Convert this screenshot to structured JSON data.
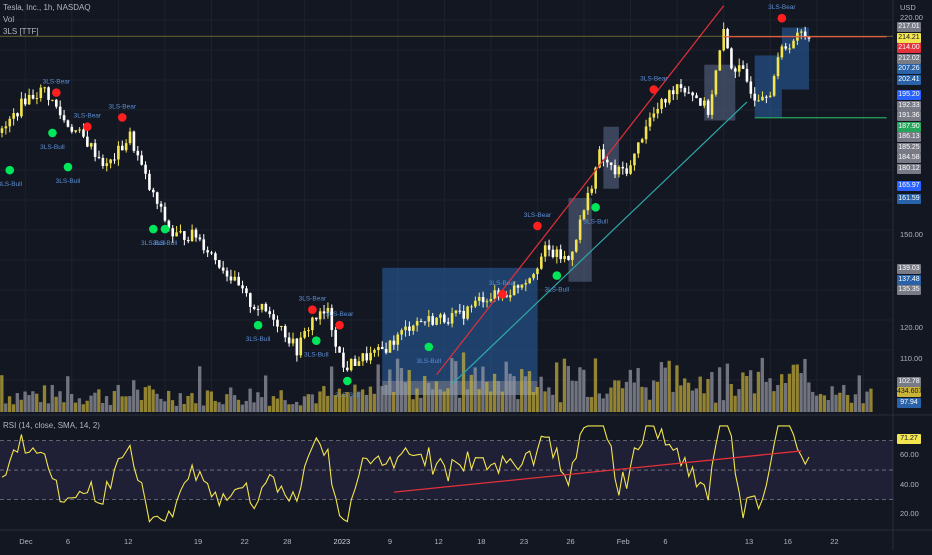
{
  "header": {
    "title": "Tesla, Inc., 1h, NASDAQ",
    "vol_label": "Vol",
    "indicator": "3LS [TTF]",
    "currency": "USD"
  },
  "rsi_panel": {
    "label": "RSI (14, close, SMA, 14, 2)",
    "value": "71.27",
    "ticks": [
      "60.00",
      "40.00",
      "20.00"
    ]
  },
  "price_axis": {
    "ticks": [
      "220.00",
      "150.00",
      "120.00",
      "110.00"
    ],
    "tags": [
      {
        "text": "217.01",
        "color": "#787b86",
        "price": 217.01
      },
      {
        "text": "214.21",
        "color": "#f2e54f",
        "price": 214.21,
        "dark": true
      },
      {
        "text": "214.00",
        "color": "#e3303a",
        "price": 214.0
      },
      {
        "text": "212.02",
        "color": "#787b86",
        "price": 212.02
      },
      {
        "text": "207.26",
        "color": "#2962a8",
        "price": 207.26
      },
      {
        "text": "202.41",
        "color": "#2962a8",
        "price": 202.41
      },
      {
        "text": "195.20",
        "color": "#2962ff",
        "price": 195.2
      },
      {
        "text": "192.33",
        "color": "#787b86",
        "price": 192.33
      },
      {
        "text": "191.36",
        "color": "#787b86",
        "price": 191.36
      },
      {
        "text": "187.90",
        "color": "#26a65b",
        "price": 187.9
      },
      {
        "text": "186.13",
        "color": "#787b86",
        "price": 186.13
      },
      {
        "text": "185.25",
        "color": "#787b86",
        "price": 185.25
      },
      {
        "text": "184.58",
        "color": "#787b86",
        "price": 184.58
      },
      {
        "text": "180.12",
        "color": "#787b86",
        "price": 180.12
      },
      {
        "text": "165.97",
        "color": "#2962ff",
        "price": 165.97
      },
      {
        "text": "161.59",
        "color": "#2962a8",
        "price": 161.59
      },
      {
        "text": "139.03",
        "color": "#787b86",
        "price": 139.03
      },
      {
        "text": "137.48",
        "color": "#2962a8",
        "price": 137.48
      },
      {
        "text": "135.35",
        "color": "#787b86",
        "price": 135.35
      },
      {
        "text": "102.78",
        "color": "#787b86",
        "price": 102.78
      },
      {
        "text": "434.607K",
        "color": "#c9b23a",
        "price": 100.2,
        "dark": true
      },
      {
        "text": "97.94",
        "color": "#2962a8",
        "price": 97.94
      }
    ]
  },
  "time_axis": {
    "labels": [
      {
        "text": "Dec",
        "i": 6
      },
      {
        "text": "6",
        "i": 18
      },
      {
        "text": "12",
        "i": 33
      },
      {
        "text": "19",
        "i": 51
      },
      {
        "text": "22",
        "i": 63
      },
      {
        "text": "28",
        "i": 74
      },
      {
        "text": "2023",
        "i": 87
      },
      {
        "text": "9",
        "i": 101
      },
      {
        "text": "12",
        "i": 113
      },
      {
        "text": "18",
        "i": 124
      },
      {
        "text": "23",
        "i": 135
      },
      {
        "text": "26",
        "i": 147
      },
      {
        "text": "Feb",
        "i": 160
      },
      {
        "text": "6",
        "i": 172
      },
      {
        "text": "13",
        "i": 193
      },
      {
        "text": "16",
        "i": 203
      },
      {
        "text": "22",
        "i": 215
      }
    ]
  },
  "signals": [
    {
      "type": "bull",
      "text": "3LS-Bull",
      "i": 2,
      "price": 171
    },
    {
      "type": "bear",
      "text": "3LS-Bear",
      "i": 14,
      "price": 196
    },
    {
      "type": "bull",
      "text": "3LS-Bull",
      "i": 13,
      "price": 183
    },
    {
      "type": "bear",
      "text": "3LS-Bear",
      "i": 22,
      "price": 185
    },
    {
      "type": "bull",
      "text": "3LS-Bull",
      "i": 17,
      "price": 172
    },
    {
      "type": "bear",
      "text": "3LS-Bear",
      "i": 31,
      "price": 188
    },
    {
      "type": "bull",
      "text": "3LS-Bull",
      "i": 39,
      "price": 152
    },
    {
      "type": "bull",
      "text": "3LS-Bull",
      "i": 42,
      "price": 152
    },
    {
      "type": "bull",
      "text": "3LS-Bull",
      "i": 66,
      "price": 121
    },
    {
      "type": "bear",
      "text": "3LS-Bear",
      "i": 80,
      "price": 126
    },
    {
      "type": "bull",
      "text": "3LS-Bull",
      "i": 81,
      "price": 116
    },
    {
      "type": "bear",
      "text": "3LS-Bear",
      "i": 87,
      "price": 121
    },
    {
      "type": "bull",
      "text": "3LS-Bull",
      "i": 89,
      "price": 103
    },
    {
      "type": "bear",
      "text": "3LS-Bear",
      "i": 129,
      "price": 131
    },
    {
      "type": "bull",
      "text": "3LS-Bull",
      "i": 110,
      "price": 114
    },
    {
      "type": "bear",
      "text": "3LS-Bear",
      "i": 138,
      "price": 153
    },
    {
      "type": "bull",
      "text": "3LS-Bull",
      "i": 143,
      "price": 137
    },
    {
      "type": "bull",
      "text": "3LS-Bull",
      "i": 153,
      "price": 159
    },
    {
      "type": "bear",
      "text": "3LS-Bear",
      "i": 168,
      "price": 197
    },
    {
      "type": "bear",
      "text": "3LS-Bear",
      "i": 201,
      "price": 220
    }
  ],
  "chart_data": {
    "type": "candlestick",
    "symbol": "TSLA",
    "interval": "1h",
    "exchange": "NASDAQ",
    "price_range": [
      93,
      222
    ],
    "last_price": 214.21,
    "volume_last": "434.607K",
    "rsi_last": 71.27,
    "rsi_range": [
      12,
      84
    ],
    "trendlines": [
      {
        "color": "#e3303a",
        "from": {
          "i": 112,
          "price": 105
        },
        "to": {
          "i": 186,
          "price": 224
        }
      },
      {
        "color": "#2fa8a8",
        "from": {
          "i": 116,
          "price": 102
        },
        "to": {
          "i": 192,
          "price": 193
        }
      },
      {
        "color": "#e3303a",
        "from": {
          "i": 186,
          "price": 214
        },
        "to": {
          "i": 228,
          "price": 214
        }
      },
      {
        "color": "#26a65b",
        "from": {
          "i": 194,
          "price": 187.9
        },
        "to": {
          "i": 228,
          "price": 187.9
        }
      }
    ],
    "zones": [
      {
        "from_i": 98,
        "to_i": 138,
        "top": 139.5,
        "bottom": 98.5,
        "color": "#2962a8"
      },
      {
        "from_i": 155,
        "to_i": 159,
        "top": 185,
        "bottom": 165,
        "color": "#5b6a8a"
      },
      {
        "from_i": 146,
        "to_i": 152,
        "top": 162,
        "bottom": 135,
        "color": "#5b6a8a"
      },
      {
        "from_i": 181,
        "to_i": 189,
        "top": 205,
        "bottom": 187,
        "color": "#5b6a8a"
      },
      {
        "from_i": 194,
        "to_i": 201,
        "top": 208,
        "bottom": 188,
        "color": "#2962a8"
      },
      {
        "from_i": 201,
        "to_i": 208,
        "top": 217,
        "bottom": 197,
        "color": "#2962a8"
      }
    ]
  }
}
